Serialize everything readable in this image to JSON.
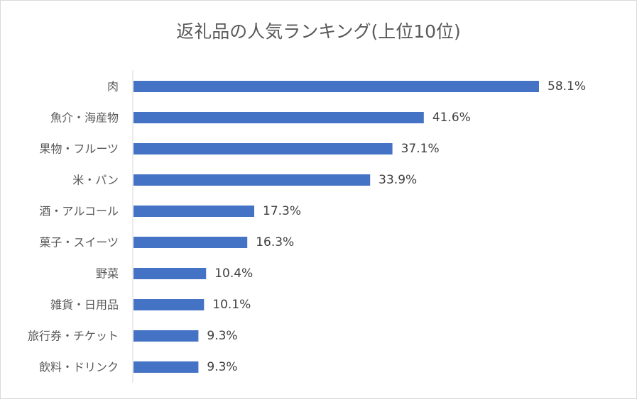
{
  "chart_data": {
    "type": "bar",
    "orientation": "horizontal",
    "title": "返礼品の人気ランキング(上位10位)",
    "xlabel": "",
    "ylabel": "",
    "categories": [
      "肉",
      "魚介・海産物",
      "果物・フルーツ",
      "米・パン",
      "酒・アルコール",
      "菓子・スイーツ",
      "野菜",
      "雑貨・日用品",
      "旅行券・チケット",
      "飲料・ドリンク"
    ],
    "values": [
      58.1,
      41.6,
      37.1,
      33.9,
      17.3,
      16.3,
      10.4,
      10.1,
      9.3,
      9.3
    ],
    "data_labels": [
      "58.1%",
      "41.6%",
      "37.1%",
      "33.9%",
      "17.3%",
      "16.3%",
      "10.4%",
      "10.1%",
      "9.3%",
      "9.3%"
    ],
    "xlim": [
      0,
      58.1
    ],
    "grid": false,
    "legend": "none",
    "bar_color": "#4472c4",
    "axis_color": "#d9d9d9"
  }
}
